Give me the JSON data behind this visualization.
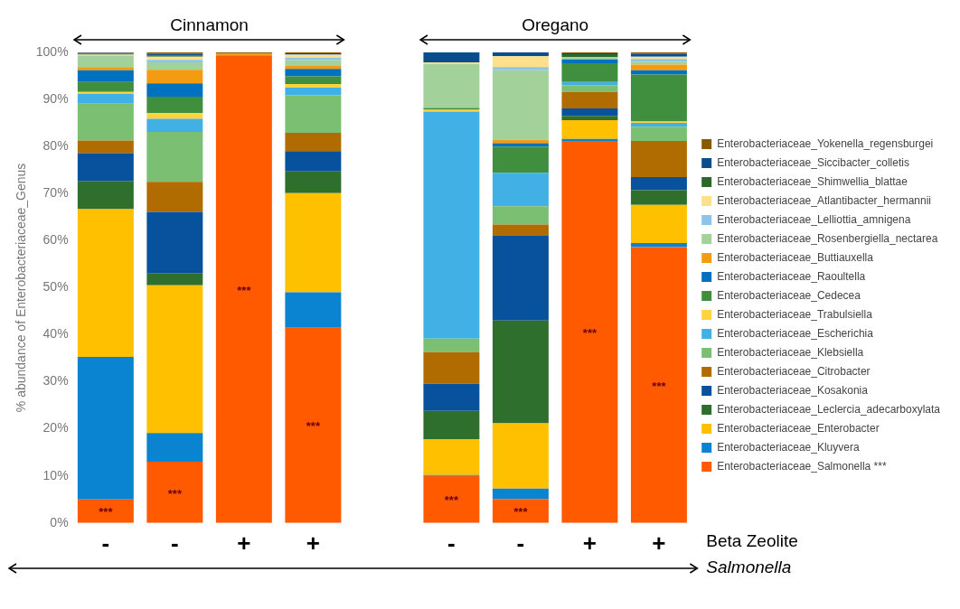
{
  "chart_data": {
    "type": "bar",
    "stacked": true,
    "ylabel": "% abundance of Enterobacteriaceae_Genus",
    "categories": [
      "-",
      "-",
      "+",
      "+",
      null,
      "-",
      "-",
      "+",
      "+"
    ],
    "ylim": [
      0,
      100
    ],
    "yticks": [
      {
        "value": 0,
        "label": "0%"
      },
      {
        "value": 10,
        "label": "10%"
      },
      {
        "value": 20,
        "label": "20%"
      },
      {
        "value": 30,
        "label": "30%"
      },
      {
        "value": 40,
        "label": "40%"
      },
      {
        "value": 50,
        "label": "50%"
      },
      {
        "value": 60,
        "label": "60%"
      },
      {
        "value": 70,
        "label": "70%"
      },
      {
        "value": 80,
        "label": "80%"
      },
      {
        "value": 90,
        "label": "90%"
      },
      {
        "value": 100,
        "label": "100%"
      }
    ],
    "legend": "right",
    "annotations": [
      "Cinnamon",
      "Oregano",
      "Beta Zeolite",
      "Salmonella"
    ],
    "series": [
      {
        "name": "Enterobacteriaceae_Salmonella ***",
        "color": "#ff5a00",
        "values": [
          5.0,
          13.0,
          99.4,
          41.5,
          null,
          10.0,
          5.1,
          81.2,
          58.6
        ],
        "value_labels": [
          "***",
          "***",
          "***",
          "***",
          null,
          "***",
          "***",
          "***",
          "***"
        ]
      },
      {
        "name": "Enterobacteriaceae_Kluyvera",
        "color": "#0a84d0",
        "values": [
          30.3,
          6.1,
          0,
          7.5,
          null,
          0.2,
          2.2,
          0.4,
          0.9
        ]
      },
      {
        "name": "Enterobacteriaceae_Enterobacter",
        "color": "#ffc000",
        "values": [
          31.4,
          31.4,
          0,
          21.1,
          null,
          7.6,
          13.9,
          4.0,
          8.1
        ]
      },
      {
        "name": "Enterobacteriaceae_Leclercia_adecarboxylata",
        "color": "#2e6f2e",
        "values": [
          6.0,
          2.5,
          0,
          4.6,
          null,
          6.0,
          21.8,
          0.9,
          3.1
        ]
      },
      {
        "name": "Enterobacteriaceae_Kosakonia",
        "color": "#08519c",
        "values": [
          5.9,
          13.1,
          0,
          4.3,
          null,
          5.8,
          18.0,
          1.6,
          2.8
        ]
      },
      {
        "name": "Enterobacteriaceae_Citrobacter",
        "color": "#b06c00",
        "values": [
          2.7,
          6.4,
          0,
          3.9,
          null,
          6.7,
          2.4,
          3.5,
          7.7
        ]
      },
      {
        "name": "Enterobacteriaceae_Klebsiella",
        "color": "#7abf72",
        "values": [
          7.8,
          10.6,
          0,
          8.0,
          null,
          2.9,
          3.9,
          1.4,
          3.0
        ]
      },
      {
        "name": "Enterobacteriaceae_Escherichia",
        "color": "#41b0e4",
        "values": [
          2.1,
          2.8,
          0,
          1.6,
          null,
          48.2,
          7.1,
          0.7,
          0.8
        ]
      },
      {
        "name": "Enterobacteriaceae_Trabulsiella",
        "color": "#ffd23f",
        "values": [
          0.4,
          1.2,
          0,
          0.8,
          null,
          0.4,
          0,
          0,
          0.3
        ]
      },
      {
        "name": "Enterobacteriaceae_Cedecea",
        "color": "#3f8f3f",
        "values": [
          2.1,
          3.5,
          0,
          1.6,
          null,
          0.4,
          5.6,
          4.0,
          10.0
        ]
      },
      {
        "name": "Enterobacteriaceae_Raoultella",
        "color": "#0070c0",
        "values": [
          2.5,
          2.8,
          0,
          1.6,
          null,
          0,
          0.7,
          0.8,
          0.9
        ]
      },
      {
        "name": "Enterobacteriaceae_Buttiauxella",
        "color": "#f39c12",
        "values": [
          0.7,
          2.9,
          0.3,
          0.6,
          null,
          0,
          0.7,
          0,
          1.2
        ]
      },
      {
        "name": "Enterobacteriaceae_Rosenbergiella_nectarea",
        "color": "#a3d19a",
        "values": [
          2.4,
          1.6,
          0,
          1.2,
          null,
          9.3,
          14.8,
          0.5,
          0.6
        ]
      },
      {
        "name": "Enterobacteriaceae_Lelliottia_amnigena",
        "color": "#8ec4ea",
        "values": [
          0.1,
          0.5,
          0,
          0.6,
          null,
          0,
          0.7,
          0,
          0.6
        ]
      },
      {
        "name": "Enterobacteriaceae_Atlantibacter_hermannii",
        "color": "#ffe08a",
        "values": [
          0.1,
          0.7,
          0,
          0.6,
          null,
          0.4,
          2.3,
          0,
          0.5
        ]
      },
      {
        "name": "Enterobacteriaceae_Shimwellia_blattae",
        "color": "#2a6a26",
        "values": [
          0.2,
          0.3,
          0,
          0,
          null,
          0,
          0,
          0.6,
          0
        ]
      },
      {
        "name": "Enterobacteriaceae_Siccibacter_colletis",
        "color": "#0a4d8c",
        "values": [
          0.2,
          0.3,
          0,
          0.3,
          null,
          2.1,
          0.8,
          0.2,
          0.6
        ]
      },
      {
        "name": "Enterobacteriaceae_Yokenella_regensburgei",
        "color": "#8a5a00",
        "values": [
          0.1,
          0.3,
          0.3,
          0.2,
          null,
          null,
          0,
          0.2,
          0.3
        ]
      }
    ]
  }
}
